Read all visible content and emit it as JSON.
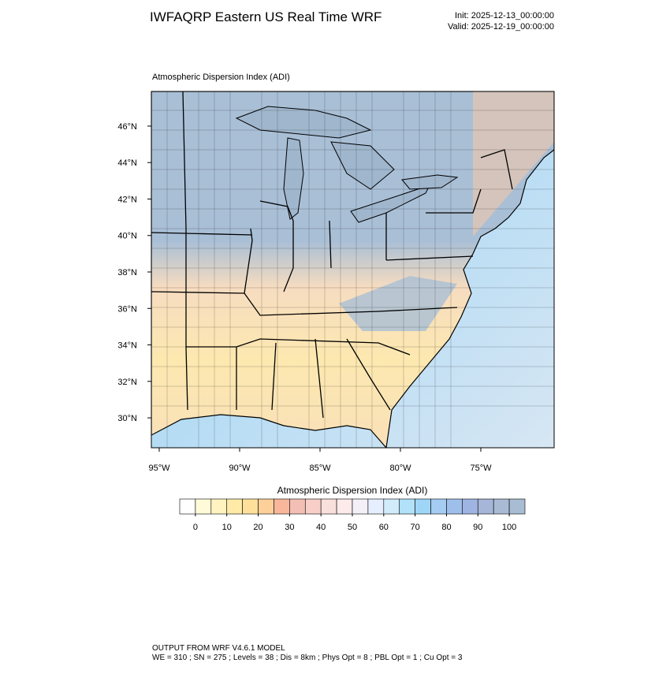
{
  "header": {
    "title": "IWFAQRP Eastern US Real Time WRF",
    "init": "Init: 2025-12-13_00:00:00",
    "valid": "Valid: 2025-12-19_00:00:00"
  },
  "map": {
    "label": "Atmospheric Dispersion Index   (ADI)",
    "lat_range": [
      28.36,
      47.9
    ],
    "lon_range": [
      -95.49,
      -70.44
    ],
    "lat_ticks": [
      {
        "value": 46,
        "label": "46°N"
      },
      {
        "value": 44,
        "label": "44°N"
      },
      {
        "value": 42,
        "label": "42°N"
      },
      {
        "value": 40,
        "label": "40°N"
      },
      {
        "value": 38,
        "label": "38°N"
      },
      {
        "value": 36,
        "label": "36°N"
      },
      {
        "value": 34,
        "label": "34°N"
      },
      {
        "value": 32,
        "label": "32°N"
      },
      {
        "value": 30,
        "label": "30°N"
      }
    ],
    "lon_ticks": [
      {
        "value": -95,
        "label": "95°W"
      },
      {
        "value": -90,
        "label": "90°W"
      },
      {
        "value": -85,
        "label": "85°W"
      },
      {
        "value": -80,
        "label": "80°W"
      },
      {
        "value": -75,
        "label": "75°W"
      }
    ]
  },
  "colorbar": {
    "title": "Atmospheric Dispersion Index  (ADI)",
    "range": [
      -5,
      105
    ],
    "ticks": [
      0,
      10,
      20,
      30,
      40,
      50,
      60,
      70,
      80,
      90,
      100
    ],
    "colors": [
      "#ffffff",
      "#fffbd8",
      "#fff3c0",
      "#ffeaa8",
      "#ffe09a",
      "#fdd09a",
      "#f8b79a",
      "#f3bfb5",
      "#f7cfc8",
      "#fae0dc",
      "#fcebea",
      "#f4f0f8",
      "#e6efff",
      "#d2ebfb",
      "#b2e1fa",
      "#9fd6f7",
      "#a5ccf3",
      "#9fbfeb",
      "#9eb4e2",
      "#a6b6d8",
      "#a9bbd4",
      "#a8bdd3"
    ]
  },
  "footer": {
    "line1": "OUTPUT FROM WRF V4.6.1 MODEL",
    "line2": "WE = 310 ; SN = 275 ; Levels = 38 ; Dis = 8km ; Phys Opt = 8 ; PBL Opt = 1 ; Cu Opt = 3"
  }
}
